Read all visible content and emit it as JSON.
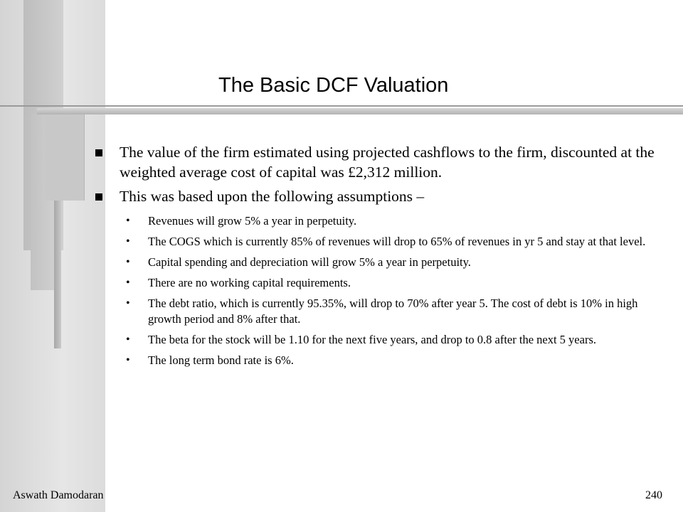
{
  "slide": {
    "title": "The Basic DCF Valuation",
    "bullets": [
      "The value of the firm estimated using projected cashflows to the firm, discounted at the weighted average cost of capital was £2,312 million.",
      "This was based upon the following assumptions –"
    ],
    "sub_bullets": [
      "Revenues will grow 5% a year in perpetuity.",
      "The COGS which is currently 85% of revenues will drop to 65% of revenues in yr 5 and stay at that level.",
      "Capital spending and depreciation will grow 5% a year in perpetuity.",
      "There are no working capital requirements.",
      "The debt ratio, which is currently 95.35%, will drop to 70% after year 5. The cost of debt is 10% in high growth period and 8% after that.",
      "The beta for the stock will be 1.10 for the next five years, and drop to 0.8 after the next 5 years.",
      "The long term bond rate is 6%."
    ]
  },
  "footer": {
    "author": "Aswath Damodaran",
    "page_number": "240"
  },
  "colors": {
    "background": "#ffffff",
    "decor_gray": "#c8c8c8",
    "rule_gray": "#b3b3b3"
  }
}
